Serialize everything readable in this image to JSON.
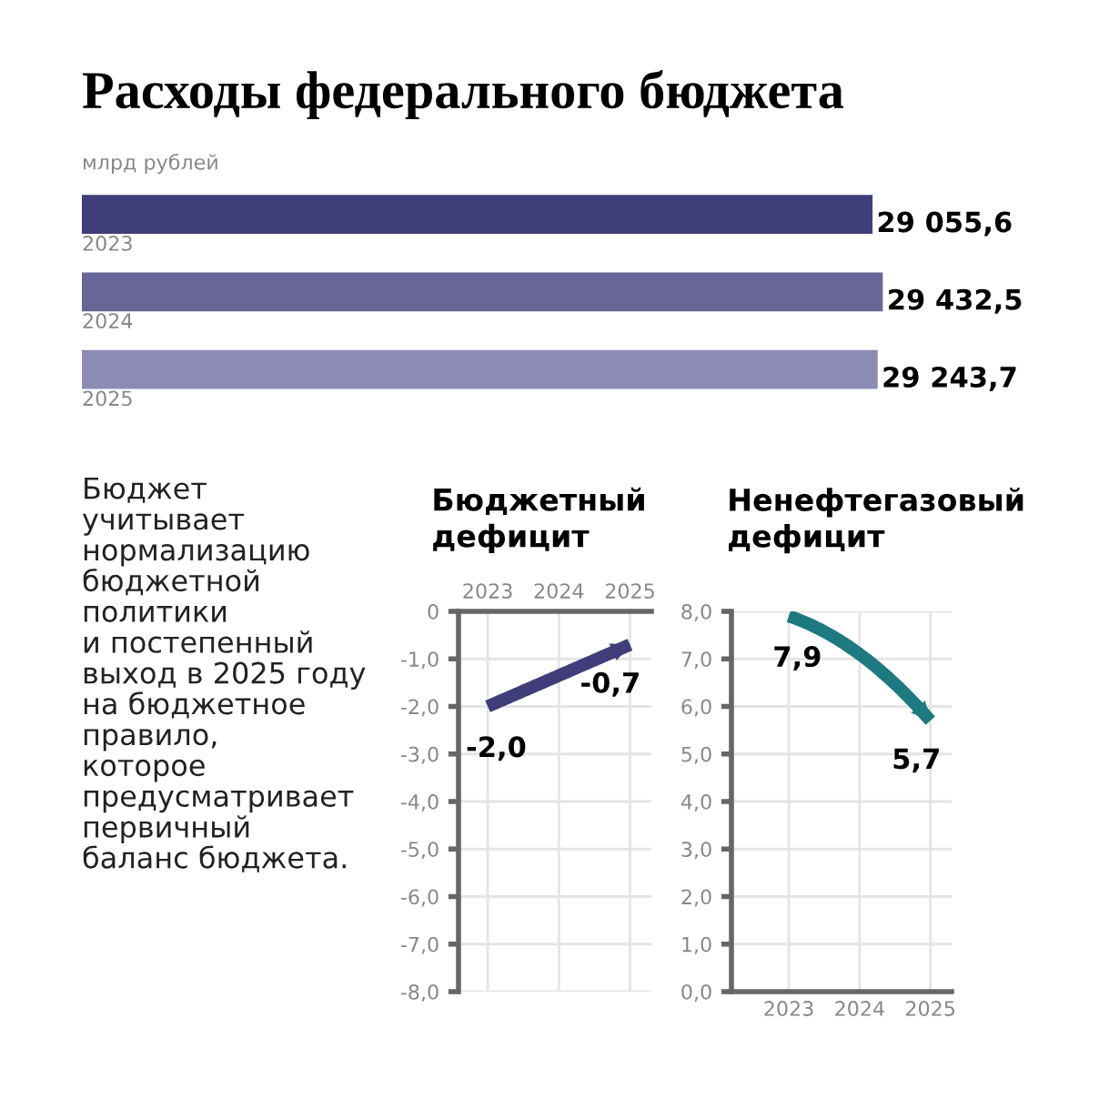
{
  "chart_data": [
    {
      "type": "bar",
      "orientation": "horizontal",
      "title": "Расходы федерального бюджета",
      "subtitle": "млрд рублей",
      "categories": [
        "2023",
        "2024",
        "2025"
      ],
      "values": [
        29055.6,
        29432.5,
        29243.7
      ],
      "colors": [
        "#3f3d7a",
        "#676696",
        "#8c8bb3"
      ],
      "value_labels": [
        "29 055,6",
        "29 432,5",
        "29 243,7"
      ]
    },
    {
      "type": "other",
      "annotations": [
        "Бюджет\nучитывает\nнормализацию\nбюджетной\nполитики\nи постепенный\nвыход в 2025 году\nна бюджетное\nправило,\nкоторое\nпредусматривает\nпервичный\nбаланс бюджета."
      ]
    },
    {
      "type": "line",
      "title": "Бюджетный\nдефицит",
      "categories": [
        "2023",
        "2024",
        "2025"
      ],
      "series": [
        {
          "color": "#3f3d7a",
          "values": [
            -2.0,
            -1.35,
            -0.7
          ],
          "value_labels": [
            "-2,0",
            null,
            "-0,7"
          ]
        }
      ],
      "ylim": [
        -8,
        0
      ],
      "yticks": [
        0,
        {
          "value": -1,
          "label": "-1,0"
        },
        {
          "value": -2,
          "label": "-2,0"
        },
        {
          "value": -3,
          "label": "-3,0"
        },
        {
          "value": -4,
          "label": "-4,0"
        },
        {
          "value": -5,
          "label": "-5,0"
        },
        {
          "value": -6,
          "label": "-6,0"
        },
        {
          "value": -7,
          "label": "-7,0"
        },
        {
          "value": -8,
          "label": "-8,0"
        }
      ],
      "grid": true
    },
    {
      "type": "line",
      "title": "Ненефтегазовый\nдефицит",
      "categories": [
        "2023",
        "2024",
        "2025"
      ],
      "series": [
        {
          "color": "#1d7a80",
          "values": [
            7.9,
            7.1,
            5.7
          ],
          "value_labels": [
            "7,9",
            null,
            "5,7"
          ]
        }
      ],
      "ylim": [
        0,
        8
      ],
      "yticks": [
        {
          "value": 0,
          "label": "0,0"
        },
        {
          "value": 1,
          "label": "1,0"
        },
        {
          "value": 2,
          "label": "2,0"
        },
        {
          "value": 3,
          "label": "3,0"
        },
        {
          "value": 4,
          "label": "4,0"
        },
        {
          "value": 5,
          "label": "5,0"
        },
        {
          "value": 6,
          "label": "6,0"
        },
        {
          "value": 7,
          "label": "7,0"
        },
        {
          "value": 8,
          "label": "8,0"
        }
      ],
      "grid": true
    }
  ]
}
